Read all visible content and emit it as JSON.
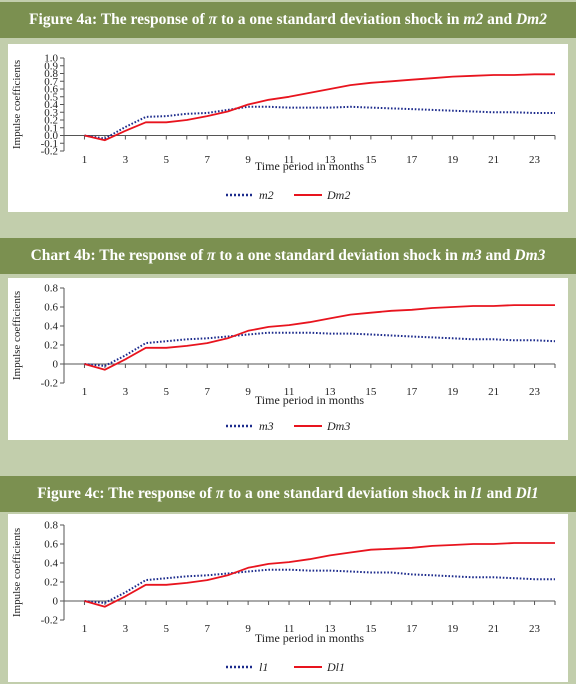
{
  "chart_data": [
    {
      "type": "line",
      "title_parts": [
        "Figure 4a: The response of ",
        "π",
        " to a one standard deviation shock in ",
        "m2",
        " and ",
        "Dm2"
      ],
      "xlabel": "Time period in months",
      "ylabel": "Impulse coefficients",
      "xlim": [
        0,
        24
      ],
      "ylim": [
        -0.2,
        1.0
      ],
      "yticks": [
        "1.0",
        "0.9",
        "0.8",
        "0.7",
        "0.6",
        "0.5",
        "0.4",
        "0.3",
        "0.2",
        "0.1",
        "0.0",
        "-0.1",
        "-0.2"
      ],
      "xticks": [
        "1",
        "3",
        "5",
        "7",
        "9",
        "11",
        "13",
        "15",
        "17",
        "19",
        "21",
        "23"
      ],
      "legend_placement": "bottom-center",
      "x": [
        1,
        2,
        3,
        4,
        5,
        6,
        7,
        8,
        9,
        10,
        11,
        12,
        13,
        14,
        15,
        16,
        17,
        18,
        19,
        20,
        21,
        22,
        23,
        24
      ],
      "series": [
        {
          "name": "m2",
          "style": "dotted",
          "color": "#1c2b8c",
          "values": [
            0.0,
            -0.04,
            0.11,
            0.24,
            0.25,
            0.28,
            0.29,
            0.33,
            0.37,
            0.37,
            0.36,
            0.36,
            0.36,
            0.37,
            0.36,
            0.35,
            0.34,
            0.33,
            0.32,
            0.31,
            0.3,
            0.3,
            0.29,
            0.29
          ]
        },
        {
          "name": "Dm2",
          "style": "solid",
          "color": "#e8141e",
          "values": [
            0.0,
            -0.06,
            0.06,
            0.17,
            0.17,
            0.2,
            0.25,
            0.31,
            0.4,
            0.46,
            0.5,
            0.55,
            0.6,
            0.65,
            0.68,
            0.7,
            0.72,
            0.74,
            0.76,
            0.77,
            0.78,
            0.78,
            0.79,
            0.79
          ]
        }
      ]
    },
    {
      "type": "line",
      "title_parts": [
        "Chart 4b: The response of ",
        "π",
        " to a one standard deviation shock in ",
        "m3",
        " and ",
        "Dm3"
      ],
      "xlabel": "Time period in months",
      "ylabel": "Impulse coefficients",
      "xlim": [
        0,
        24
      ],
      "ylim": [
        -0.2,
        0.8
      ],
      "yticks": [
        "0.8",
        "0.6",
        "0.4",
        "0.2",
        "0",
        "-0.2"
      ],
      "xticks": [
        "1",
        "3",
        "5",
        "7",
        "9",
        "11",
        "13",
        "15",
        "17",
        "19",
        "21",
        "23"
      ],
      "legend_placement": "bottom-center",
      "x": [
        1,
        2,
        3,
        4,
        5,
        6,
        7,
        8,
        9,
        10,
        11,
        12,
        13,
        14,
        15,
        16,
        17,
        18,
        19,
        20,
        21,
        22,
        23,
        24
      ],
      "series": [
        {
          "name": "m3",
          "style": "dotted",
          "color": "#1c2b8c",
          "values": [
            0.0,
            -0.02,
            0.09,
            0.22,
            0.24,
            0.26,
            0.27,
            0.29,
            0.31,
            0.33,
            0.33,
            0.33,
            0.32,
            0.32,
            0.31,
            0.3,
            0.29,
            0.28,
            0.27,
            0.26,
            0.26,
            0.25,
            0.25,
            0.24
          ]
        },
        {
          "name": "Dm3",
          "style": "solid",
          "color": "#e8141e",
          "values": [
            0.0,
            -0.06,
            0.05,
            0.17,
            0.17,
            0.19,
            0.22,
            0.27,
            0.35,
            0.39,
            0.41,
            0.44,
            0.48,
            0.52,
            0.54,
            0.56,
            0.57,
            0.59,
            0.6,
            0.61,
            0.61,
            0.62,
            0.62,
            0.62
          ]
        }
      ]
    },
    {
      "type": "line",
      "title_parts": [
        "Figure 4c: The response of ",
        "π",
        " to a one standard deviation shock in ",
        "l1",
        " and ",
        "Dl1"
      ],
      "xlabel": "Time period in months",
      "ylabel": "Impulse coefficients",
      "xlim": [
        0,
        24
      ],
      "ylim": [
        -0.2,
        0.8
      ],
      "yticks": [
        "0.8",
        "0.6",
        "0.4",
        "0.2",
        "0",
        "-0.2"
      ],
      "xticks": [
        "1",
        "3",
        "5",
        "7",
        "9",
        "11",
        "13",
        "15",
        "17",
        "19",
        "21",
        "23"
      ],
      "legend_placement": "bottom-center",
      "x": [
        1,
        2,
        3,
        4,
        5,
        6,
        7,
        8,
        9,
        10,
        11,
        12,
        13,
        14,
        15,
        16,
        17,
        18,
        19,
        20,
        21,
        22,
        23,
        24
      ],
      "series": [
        {
          "name": "l1",
          "style": "dotted",
          "color": "#1c2b8c",
          "values": [
            0.0,
            -0.02,
            0.09,
            0.22,
            0.24,
            0.26,
            0.27,
            0.29,
            0.31,
            0.33,
            0.33,
            0.32,
            0.32,
            0.31,
            0.3,
            0.3,
            0.28,
            0.27,
            0.26,
            0.25,
            0.25,
            0.24,
            0.23,
            0.23
          ]
        },
        {
          "name": "Dl1",
          "style": "solid",
          "color": "#e8141e",
          "values": [
            0.0,
            -0.06,
            0.05,
            0.17,
            0.17,
            0.19,
            0.22,
            0.27,
            0.35,
            0.39,
            0.41,
            0.44,
            0.48,
            0.51,
            0.54,
            0.55,
            0.56,
            0.58,
            0.59,
            0.6,
            0.6,
            0.61,
            0.61,
            0.61
          ]
        }
      ]
    }
  ]
}
